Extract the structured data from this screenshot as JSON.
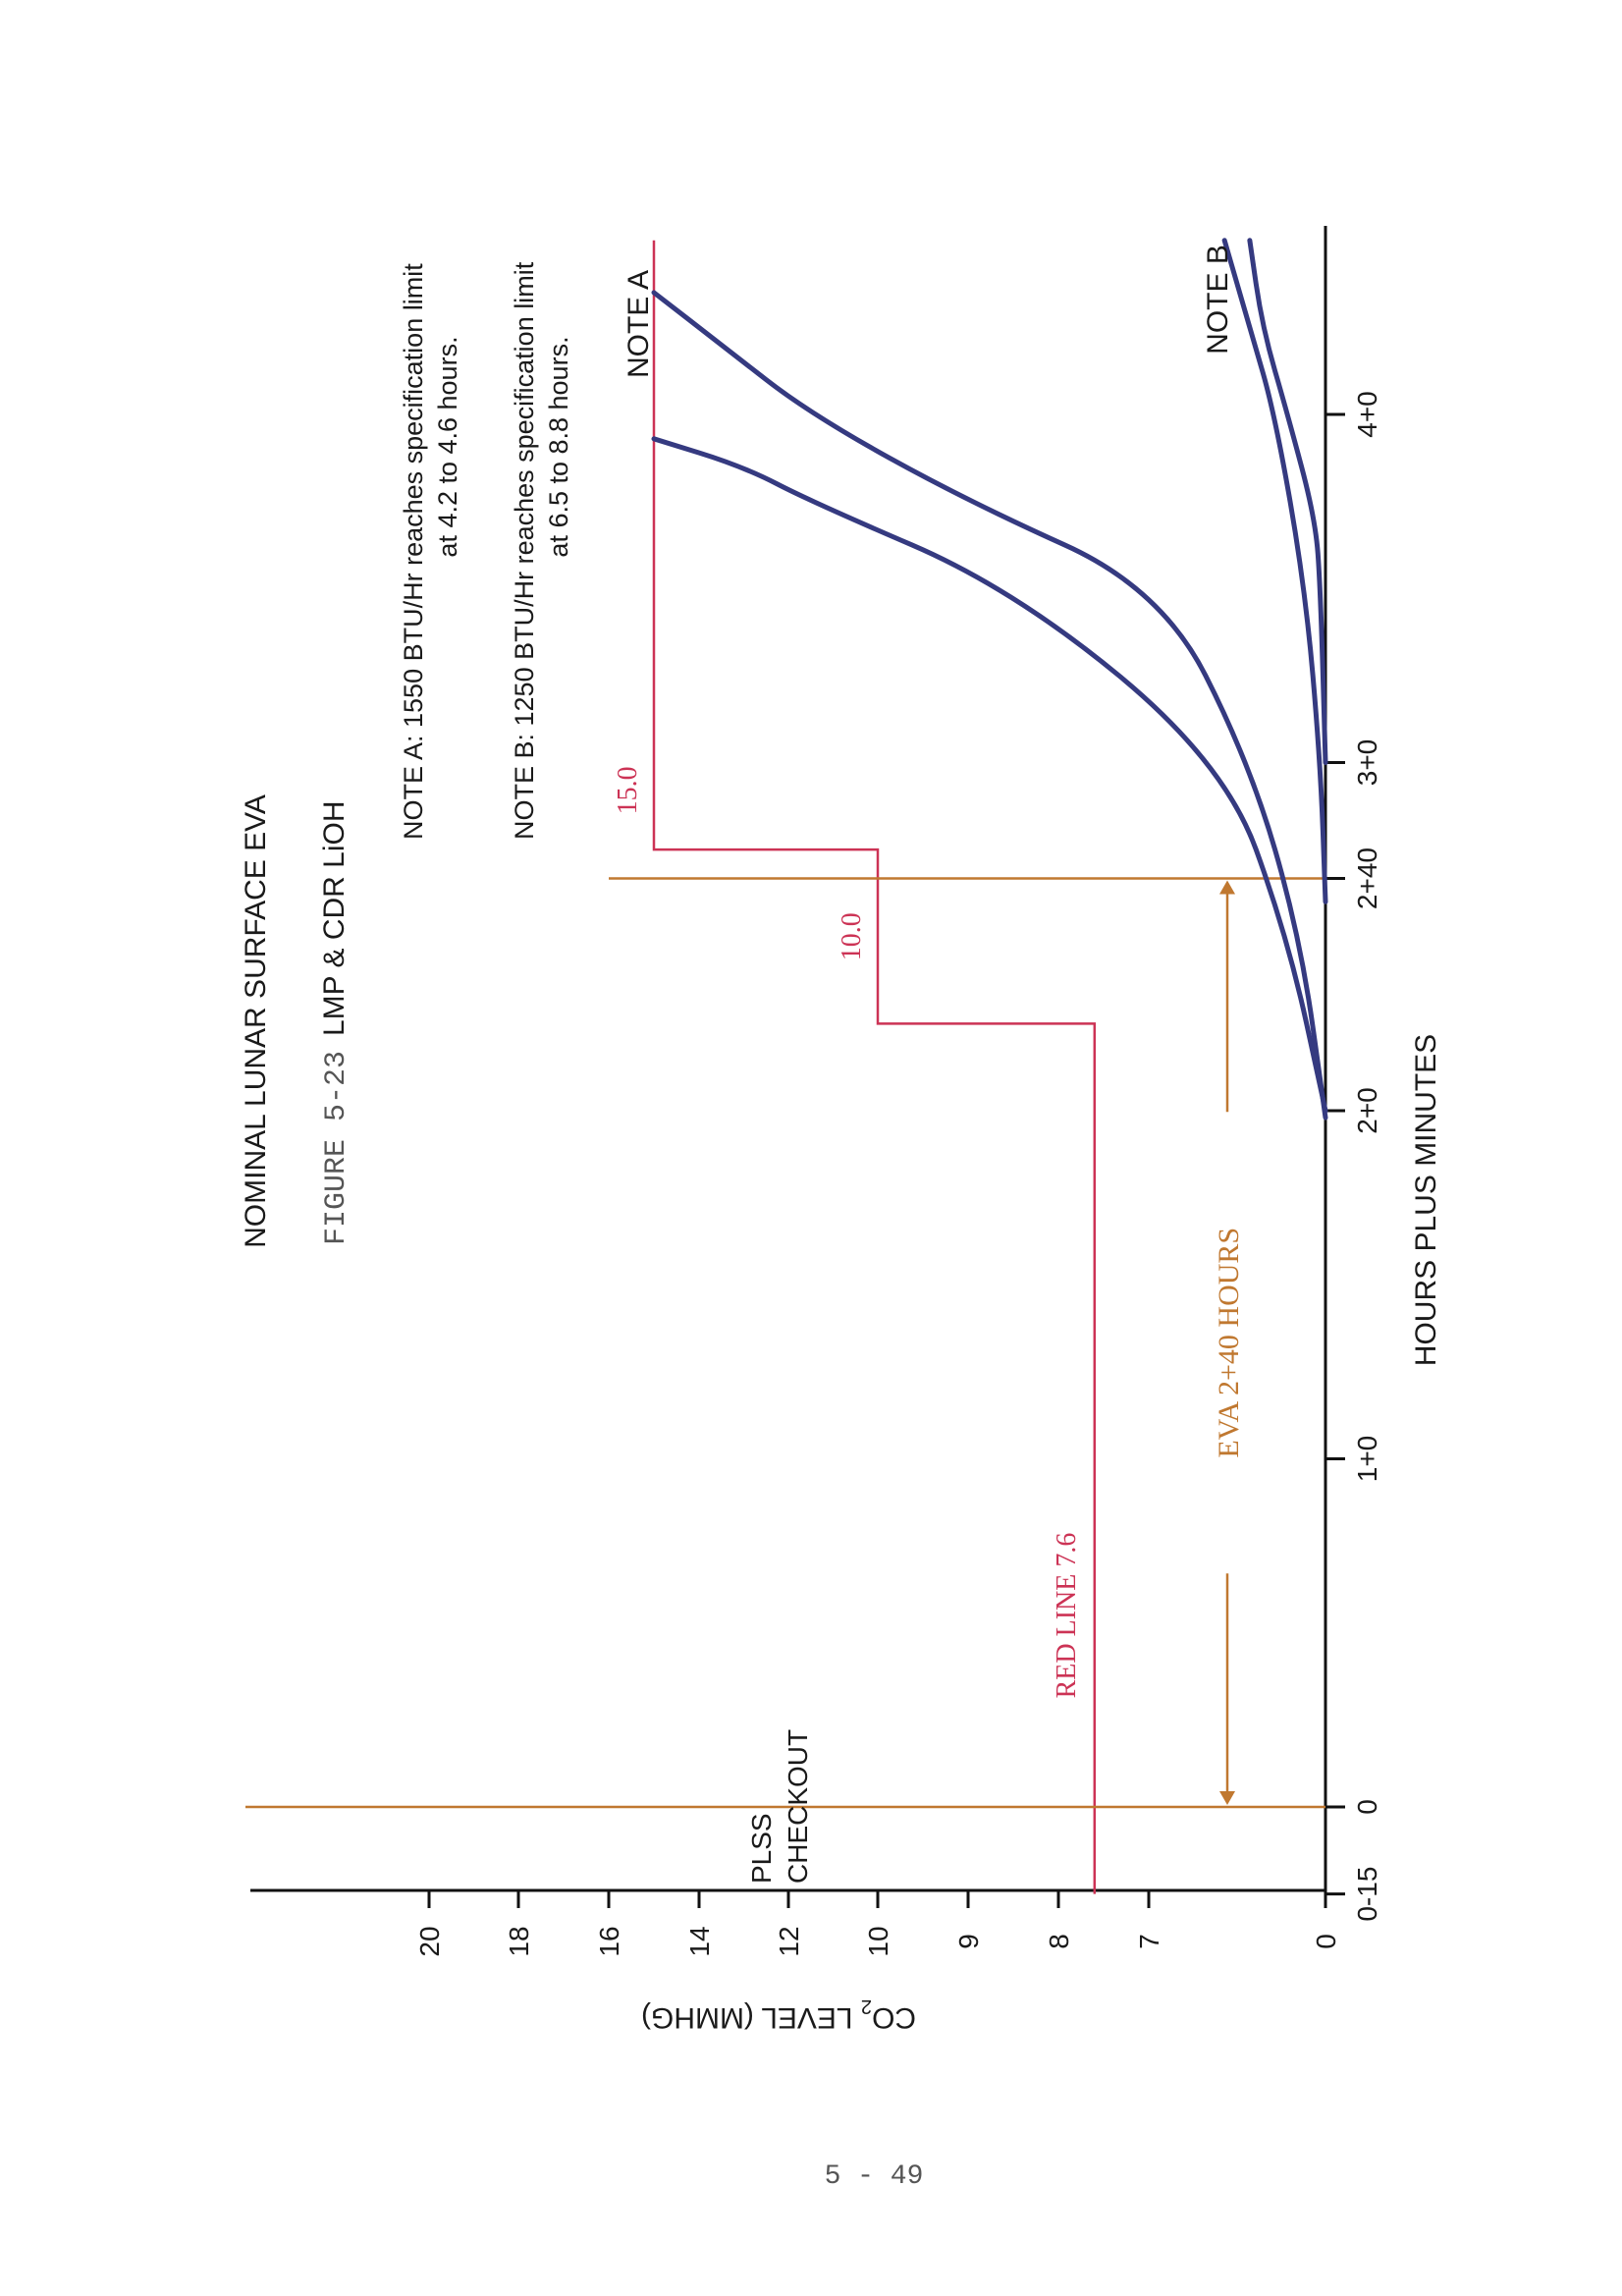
{
  "title": "NOMINAL LUNAR SURFACE EVA",
  "figure_label": "FIGURE 5-23",
  "figure_title": "LMP  &  CDR  LiOH",
  "notes": {
    "a_line1": "NOTE  A:  1550  BTU/Hr  reaches specification limit",
    "a_line2": "at 4.2 to 4.6 hours.",
    "b_line1": "NOTE  B:  1250  BTU/Hr  reaches specification limit",
    "b_line2": "at 6.5 to 8.8 hours."
  },
  "page_number": "5 - 49",
  "colors": {
    "curve": "#353a80",
    "red_line": "#cc3355",
    "orange": "#c07830",
    "axis": "#111111"
  },
  "chart_data": {
    "type": "line",
    "orientation": "rotated 90 degrees counter-clockwise",
    "xlabel": "HOURS  PLUS  MINUTES",
    "ylabel_main": "CO",
    "ylabel_sub": "2",
    "ylabel_rest": " LEVEL  (MMHG)",
    "x_ticks": [
      {
        "label": "0-15",
        "hours": -0.25
      },
      {
        "label": "0",
        "hours": 0
      },
      {
        "label": "1+0",
        "hours": 1
      },
      {
        "label": "2+0",
        "hours": 2
      },
      {
        "label": "2+40",
        "hours": 2.667
      },
      {
        "label": "3+0",
        "hours": 3
      },
      {
        "label": "4+0",
        "hours": 4
      }
    ],
    "y_ticks": [
      "0",
      "7",
      "8",
      "9",
      "10",
      "12",
      "14",
      "16",
      "18",
      "20"
    ],
    "red_line_limits": [
      {
        "label": "RED  LINE  7.6",
        "value": 7.6,
        "from_hours": -0.25,
        "to_hours": 2.25
      },
      {
        "label": "10.0",
        "value": 10.0,
        "from_hours": 2.25,
        "to_hours": 2.75
      },
      {
        "label": "15.0",
        "value": 15.0,
        "from_hours": 2.75,
        "to_hours": 4.5
      }
    ],
    "markers": {
      "pre_eva_label_1": "PLSS",
      "pre_eva_label_2": "CHECKOUT",
      "eva_start_hours": 0,
      "eva_end_hours": 2.667,
      "eva_label": "EVA  2+40  HOURS"
    },
    "series": [
      {
        "name": "NOTE  A",
        "points": [
          [
            1.98,
            0
          ],
          [
            2.5,
            1.0
          ],
          [
            3.0,
            3.0
          ],
          [
            3.5,
            6.5
          ],
          [
            3.75,
            9.0
          ],
          [
            4.0,
            11.5
          ],
          [
            4.2,
            13.5
          ],
          [
            4.35,
            15.0
          ]
        ]
      },
      {
        "name": "NOTE  A",
        "points": [
          [
            2.0,
            0
          ],
          [
            2.5,
            1.5
          ],
          [
            3.0,
            4.0
          ],
          [
            3.5,
            8.5
          ],
          [
            3.75,
            11.5
          ],
          [
            3.85,
            13.0
          ],
          [
            3.93,
            15.0
          ]
        ]
      },
      {
        "name": "NOTE  B",
        "points": [
          [
            2.6,
            0
          ],
          [
            3.0,
            0.2
          ],
          [
            3.5,
            0.8
          ],
          [
            4.0,
            2.0
          ],
          [
            4.25,
            3.0
          ],
          [
            4.5,
            4.0
          ]
        ]
      },
      {
        "name": "NOTE  B",
        "points": [
          [
            3.0,
            0
          ],
          [
            3.5,
            0.2
          ],
          [
            3.7,
            0.4
          ],
          [
            4.0,
            1.5
          ],
          [
            4.25,
            2.5
          ],
          [
            4.5,
            3.0
          ]
        ]
      }
    ]
  }
}
